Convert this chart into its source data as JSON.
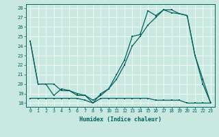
{
  "xlabel": "Humidex (Indice chaleur)",
  "bg_color": "#c8e8e0",
  "line_color": "#006060",
  "grid_color": "#ffffff",
  "xlim": [
    -0.5,
    23.5
  ],
  "ylim": [
    17.6,
    28.4
  ],
  "yticks": [
    18,
    19,
    20,
    21,
    22,
    23,
    24,
    25,
    26,
    27,
    28
  ],
  "xticks": [
    0,
    1,
    2,
    3,
    4,
    5,
    6,
    7,
    8,
    9,
    10,
    11,
    12,
    13,
    14,
    15,
    16,
    17,
    18,
    19,
    20,
    21,
    22,
    23
  ],
  "series1_x": [
    0,
    1,
    2,
    3,
    4,
    5,
    6,
    7,
    8,
    9,
    10,
    11,
    12,
    13,
    14,
    15,
    16,
    17,
    18,
    19,
    20,
    21,
    22,
    23
  ],
  "series1_y": [
    24.5,
    20.0,
    20.0,
    18.8,
    19.5,
    19.3,
    18.8,
    18.8,
    18.0,
    19.0,
    19.5,
    21.0,
    22.5,
    25.0,
    25.2,
    27.7,
    27.2,
    27.8,
    27.8,
    27.4,
    27.2,
    23.0,
    20.0,
    18.0
  ],
  "series2_x": [
    0,
    1,
    2,
    3,
    4,
    5,
    6,
    7,
    8,
    9,
    10,
    11,
    12,
    13,
    14,
    15,
    16,
    17,
    18,
    19,
    20,
    21,
    22,
    23
  ],
  "series2_y": [
    24.5,
    20.0,
    20.0,
    20.0,
    19.3,
    19.3,
    19.0,
    18.8,
    18.3,
    18.8,
    19.5,
    20.5,
    22.0,
    24.0,
    25.0,
    26.2,
    27.0,
    27.8,
    27.5,
    27.4,
    27.2,
    23.0,
    20.5,
    18.0
  ],
  "series3_x": [
    0,
    1,
    2,
    3,
    4,
    5,
    6,
    7,
    8,
    9,
    10,
    11,
    12,
    13,
    14,
    15,
    16,
    17,
    18,
    19,
    20,
    21,
    22,
    23
  ],
  "series3_y": [
    18.5,
    18.5,
    18.5,
    18.5,
    18.5,
    18.5,
    18.5,
    18.3,
    18.0,
    18.5,
    18.5,
    18.5,
    18.5,
    18.5,
    18.5,
    18.5,
    18.3,
    18.3,
    18.3,
    18.3,
    18.0,
    18.0,
    18.0,
    18.0
  ]
}
